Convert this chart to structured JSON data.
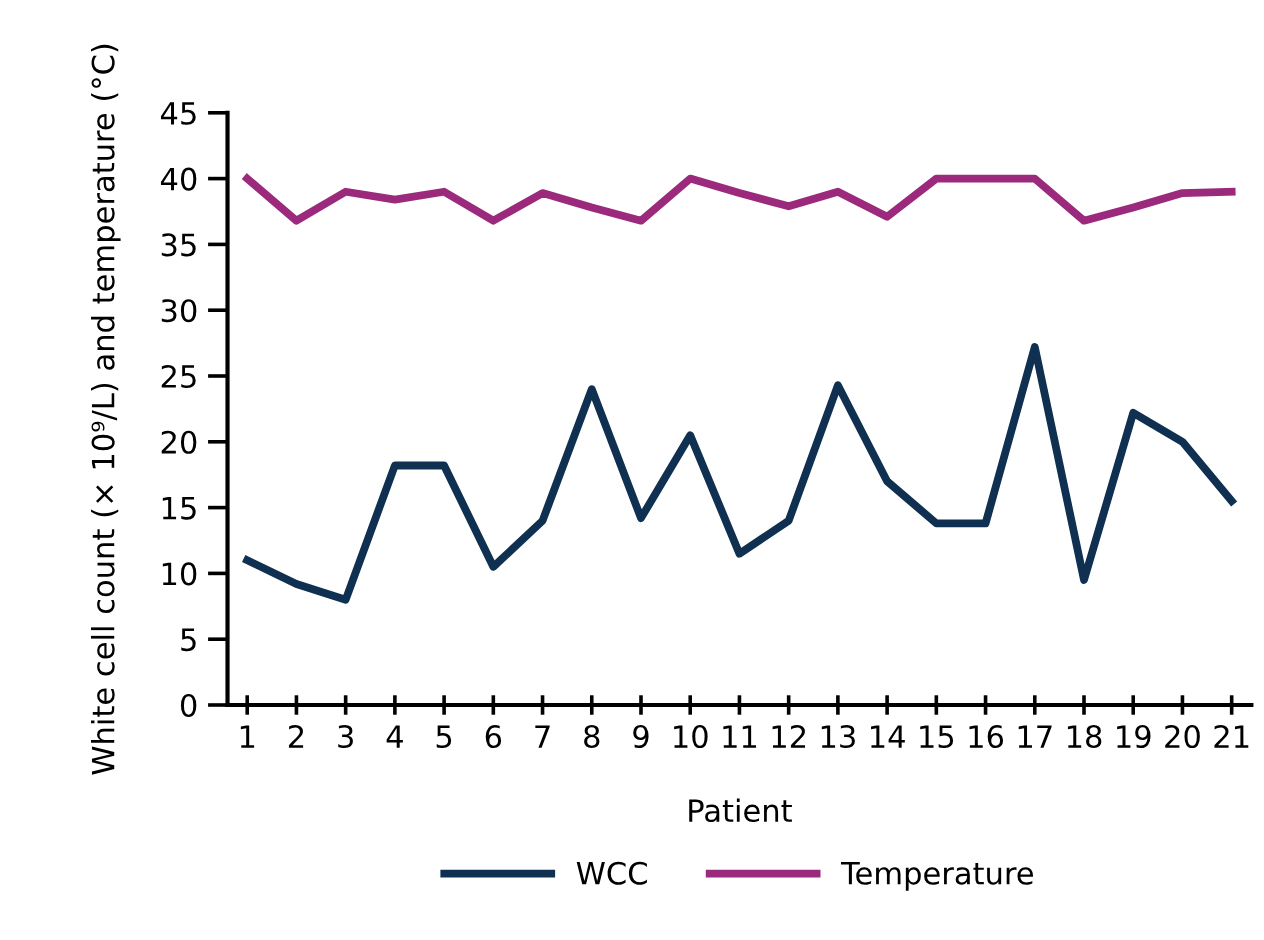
{
  "chart_data": {
    "type": "line",
    "xlabel": "Patient",
    "ylabel": "White cell count (× 10⁹/L) and temperature (°C)",
    "categories": [
      "1",
      "2",
      "3",
      "4",
      "5",
      "6",
      "7",
      "8",
      "9",
      "10",
      "11",
      "12",
      "13",
      "14",
      "15",
      "16",
      "17",
      "18",
      "19",
      "20",
      "21"
    ],
    "series": [
      {
        "name": "WCC",
        "color": "#0f3050",
        "values": [
          11,
          9.2,
          8,
          18.2,
          18.2,
          10.5,
          14,
          24,
          14.2,
          20.5,
          11.5,
          14,
          24.3,
          17,
          13.8,
          13.8,
          27.2,
          9.5,
          22.2,
          20,
          15.5
        ]
      },
      {
        "name": "Temperature",
        "color": "#9b2a7c",
        "values": [
          40,
          36.8,
          39,
          38.4,
          39,
          36.8,
          38.9,
          37.8,
          36.8,
          40,
          38.9,
          37.9,
          39,
          37.1,
          40,
          40,
          40,
          36.8,
          37.8,
          38.9,
          39
        ]
      }
    ],
    "ylim": [
      0,
      45
    ],
    "yticks": [
      0,
      5,
      10,
      15,
      20,
      25,
      30,
      35,
      40,
      45
    ],
    "grid": false,
    "legend": "bottom",
    "marker": "none",
    "line_style": "solid"
  }
}
